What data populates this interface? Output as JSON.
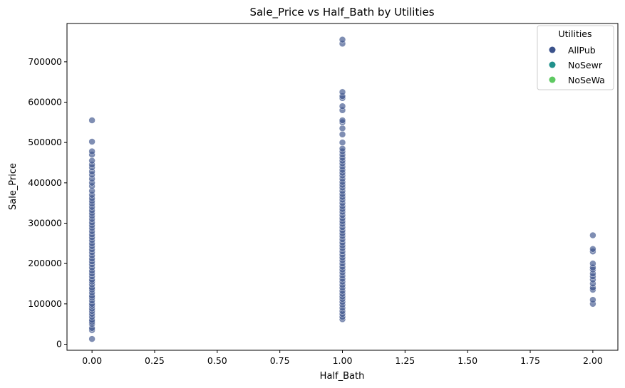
{
  "chart_data": {
    "type": "scatter",
    "title": "Sale_Price vs Half_Bath by Utilities",
    "xlabel": "Half_Bath",
    "ylabel": "Sale_Price",
    "xlim": [
      -0.1,
      2.1
    ],
    "ylim": [
      -15000,
      795000
    ],
    "xticks": [
      0.0,
      0.25,
      0.5,
      0.75,
      1.0,
      1.25,
      1.5,
      1.75,
      2.0
    ],
    "xtick_labels": [
      "0.00",
      "0.25",
      "0.50",
      "0.75",
      "1.00",
      "1.25",
      "1.50",
      "1.75",
      "2.00"
    ],
    "yticks": [
      0,
      100000,
      200000,
      300000,
      400000,
      500000,
      600000,
      700000
    ],
    "ytick_labels": [
      "0",
      "100000",
      "200000",
      "300000",
      "400000",
      "500000",
      "600000",
      "700000"
    ],
    "grid": false,
    "legend": {
      "title": "Utilities",
      "placement": "top-right",
      "entries": [
        {
          "name": "AllPub",
          "color": "#3b528b"
        },
        {
          "name": "NoSewr",
          "color": "#21918c"
        },
        {
          "name": "NoSeWa",
          "color": "#5ec962"
        }
      ]
    },
    "series": [
      {
        "name": "AllPub",
        "color": "#3b528b",
        "points": [
          {
            "x": 0,
            "y": 13000
          },
          {
            "x": 0,
            "y": 35000
          },
          {
            "x": 0,
            "y": 40000
          },
          {
            "x": 0,
            "y": 50000
          },
          {
            "x": 0,
            "y": 55000
          },
          {
            "x": 0,
            "y": 60000
          },
          {
            "x": 0,
            "y": 68000
          },
          {
            "x": 0,
            "y": 75000
          },
          {
            "x": 0,
            "y": 82000
          },
          {
            "x": 0,
            "y": 88000
          },
          {
            "x": 0,
            "y": 95000
          },
          {
            "x": 0,
            "y": 100000
          },
          {
            "x": 0,
            "y": 108000
          },
          {
            "x": 0,
            "y": 115000
          },
          {
            "x": 0,
            "y": 120000
          },
          {
            "x": 0,
            "y": 128000
          },
          {
            "x": 0,
            "y": 135000
          },
          {
            "x": 0,
            "y": 140000
          },
          {
            "x": 0,
            "y": 148000
          },
          {
            "x": 0,
            "y": 155000
          },
          {
            "x": 0,
            "y": 160000
          },
          {
            "x": 0,
            "y": 168000
          },
          {
            "x": 0,
            "y": 175000
          },
          {
            "x": 0,
            "y": 182000
          },
          {
            "x": 0,
            "y": 190000
          },
          {
            "x": 0,
            "y": 198000
          },
          {
            "x": 0,
            "y": 205000
          },
          {
            "x": 0,
            "y": 212000
          },
          {
            "x": 0,
            "y": 220000
          },
          {
            "x": 0,
            "y": 228000
          },
          {
            "x": 0,
            "y": 235000
          },
          {
            "x": 0,
            "y": 243000
          },
          {
            "x": 0,
            "y": 250000
          },
          {
            "x": 0,
            "y": 258000
          },
          {
            "x": 0,
            "y": 265000
          },
          {
            "x": 0,
            "y": 272000
          },
          {
            "x": 0,
            "y": 280000
          },
          {
            "x": 0,
            "y": 288000
          },
          {
            "x": 0,
            "y": 295000
          },
          {
            "x": 0,
            "y": 302000
          },
          {
            "x": 0,
            "y": 310000
          },
          {
            "x": 0,
            "y": 318000
          },
          {
            "x": 0,
            "y": 325000
          },
          {
            "x": 0,
            "y": 332000
          },
          {
            "x": 0,
            "y": 340000
          },
          {
            "x": 0,
            "y": 348000
          },
          {
            "x": 0,
            "y": 355000
          },
          {
            "x": 0,
            "y": 362000
          },
          {
            "x": 0,
            "y": 370000
          },
          {
            "x": 0,
            "y": 380000
          },
          {
            "x": 0,
            "y": 392000
          },
          {
            "x": 0,
            "y": 400000
          },
          {
            "x": 0,
            "y": 410000
          },
          {
            "x": 0,
            "y": 420000
          },
          {
            "x": 0,
            "y": 428000
          },
          {
            "x": 0,
            "y": 438000
          },
          {
            "x": 0,
            "y": 445000
          },
          {
            "x": 0,
            "y": 455000
          },
          {
            "x": 0,
            "y": 470000
          },
          {
            "x": 0,
            "y": 478000
          },
          {
            "x": 0,
            "y": 502000
          },
          {
            "x": 0,
            "y": 555000
          },
          {
            "x": 1,
            "y": 62000
          },
          {
            "x": 1,
            "y": 68000
          },
          {
            "x": 1,
            "y": 75000
          },
          {
            "x": 1,
            "y": 82000
          },
          {
            "x": 1,
            "y": 90000
          },
          {
            "x": 1,
            "y": 98000
          },
          {
            "x": 1,
            "y": 105000
          },
          {
            "x": 1,
            "y": 112000
          },
          {
            "x": 1,
            "y": 118000
          },
          {
            "x": 1,
            "y": 125000
          },
          {
            "x": 1,
            "y": 132000
          },
          {
            "x": 1,
            "y": 140000
          },
          {
            "x": 1,
            "y": 147000
          },
          {
            "x": 1,
            "y": 155000
          },
          {
            "x": 1,
            "y": 162000
          },
          {
            "x": 1,
            "y": 170000
          },
          {
            "x": 1,
            "y": 178000
          },
          {
            "x": 1,
            "y": 185000
          },
          {
            "x": 1,
            "y": 192000
          },
          {
            "x": 1,
            "y": 200000
          },
          {
            "x": 1,
            "y": 208000
          },
          {
            "x": 1,
            "y": 215000
          },
          {
            "x": 1,
            "y": 222000
          },
          {
            "x": 1,
            "y": 230000
          },
          {
            "x": 1,
            "y": 238000
          },
          {
            "x": 1,
            "y": 245000
          },
          {
            "x": 1,
            "y": 252000
          },
          {
            "x": 1,
            "y": 260000
          },
          {
            "x": 1,
            "y": 268000
          },
          {
            "x": 1,
            "y": 275000
          },
          {
            "x": 1,
            "y": 282000
          },
          {
            "x": 1,
            "y": 290000
          },
          {
            "x": 1,
            "y": 298000
          },
          {
            "x": 1,
            "y": 305000
          },
          {
            "x": 1,
            "y": 312000
          },
          {
            "x": 1,
            "y": 320000
          },
          {
            "x": 1,
            "y": 328000
          },
          {
            "x": 1,
            "y": 335000
          },
          {
            "x": 1,
            "y": 342000
          },
          {
            "x": 1,
            "y": 350000
          },
          {
            "x": 1,
            "y": 358000
          },
          {
            "x": 1,
            "y": 365000
          },
          {
            "x": 1,
            "y": 372000
          },
          {
            "x": 1,
            "y": 380000
          },
          {
            "x": 1,
            "y": 388000
          },
          {
            "x": 1,
            "y": 395000
          },
          {
            "x": 1,
            "y": 402000
          },
          {
            "x": 1,
            "y": 410000
          },
          {
            "x": 1,
            "y": 418000
          },
          {
            "x": 1,
            "y": 425000
          },
          {
            "x": 1,
            "y": 432000
          },
          {
            "x": 1,
            "y": 440000
          },
          {
            "x": 1,
            "y": 448000
          },
          {
            "x": 1,
            "y": 455000
          },
          {
            "x": 1,
            "y": 462000
          },
          {
            "x": 1,
            "y": 470000
          },
          {
            "x": 1,
            "y": 478000
          },
          {
            "x": 1,
            "y": 485000
          },
          {
            "x": 1,
            "y": 500000
          },
          {
            "x": 1,
            "y": 520000
          },
          {
            "x": 1,
            "y": 535000
          },
          {
            "x": 1,
            "y": 550000
          },
          {
            "x": 1,
            "y": 555000
          },
          {
            "x": 1,
            "y": 580000
          },
          {
            "x": 1,
            "y": 590000
          },
          {
            "x": 1,
            "y": 610000
          },
          {
            "x": 1,
            "y": 615000
          },
          {
            "x": 1,
            "y": 625000
          },
          {
            "x": 1,
            "y": 745000
          },
          {
            "x": 1,
            "y": 755000
          },
          {
            "x": 2,
            "y": 100000
          },
          {
            "x": 2,
            "y": 110000
          },
          {
            "x": 2,
            "y": 135000
          },
          {
            "x": 2,
            "y": 140000
          },
          {
            "x": 2,
            "y": 150000
          },
          {
            "x": 2,
            "y": 160000
          },
          {
            "x": 2,
            "y": 168000
          },
          {
            "x": 2,
            "y": 175000
          },
          {
            "x": 2,
            "y": 185000
          },
          {
            "x": 2,
            "y": 190000
          },
          {
            "x": 2,
            "y": 200000
          },
          {
            "x": 2,
            "y": 230000
          },
          {
            "x": 2,
            "y": 236000
          },
          {
            "x": 2,
            "y": 270000
          }
        ]
      }
    ]
  }
}
